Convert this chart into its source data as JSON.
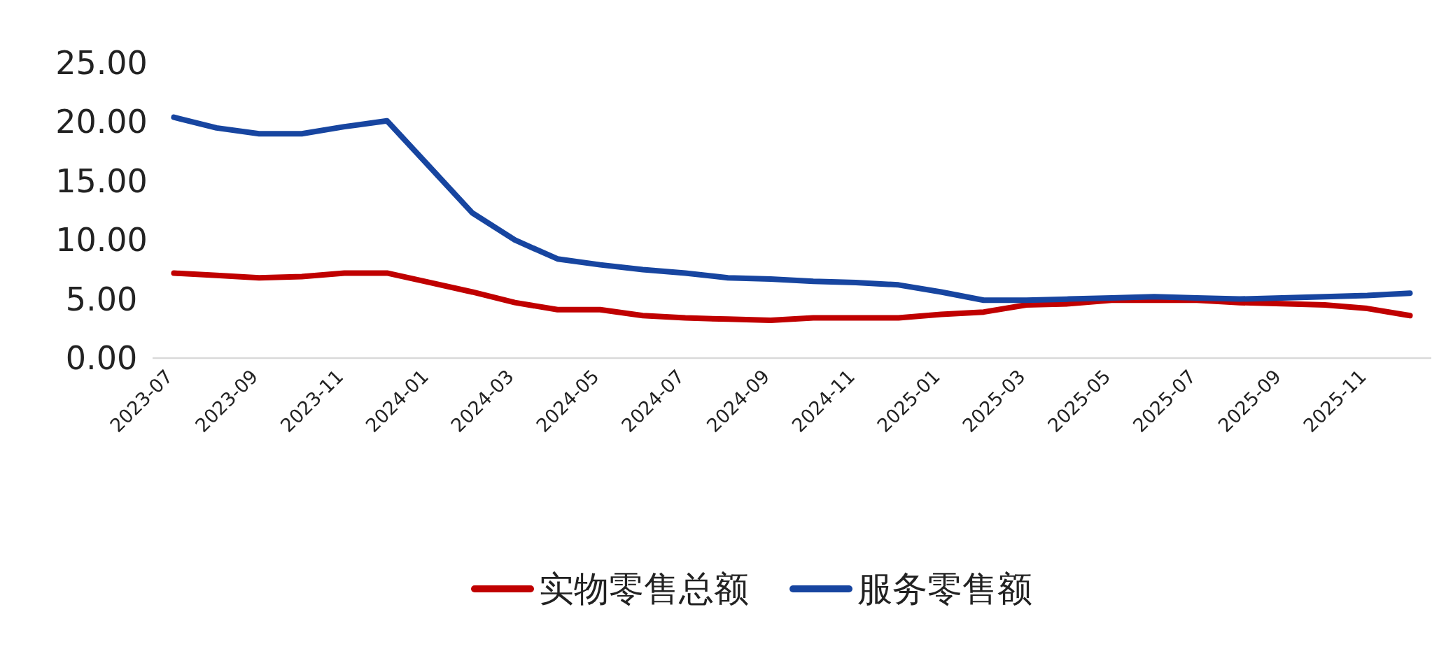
{
  "chart_data": {
    "type": "line",
    "categories": [
      "2023-07",
      null,
      "2023-09",
      null,
      "2023-11",
      null,
      "2024-01",
      null,
      "2024-03",
      null,
      "2024-05",
      null,
      "2024-07",
      null,
      "2024-09",
      null,
      "2024-11",
      null,
      "2025-01",
      null,
      "2025-03",
      null,
      "2025-05",
      null,
      "2025-07",
      null,
      "2025-09",
      null,
      "2025-11",
      null
    ],
    "series": [
      {
        "name": "实物零售总额",
        "color": "#c00000",
        "values": [
          7.2,
          7.0,
          6.8,
          6.9,
          7.2,
          7.2,
          6.4,
          5.6,
          4.7,
          4.1,
          4.1,
          3.6,
          3.4,
          3.3,
          3.2,
          3.4,
          3.4,
          3.4,
          3.7,
          3.9,
          4.5,
          4.6,
          4.9,
          4.9,
          4.9,
          4.7,
          4.6,
          4.5,
          4.2,
          3.6
        ]
      },
      {
        "name": "服务零售额",
        "color": "#1745a0",
        "values": [
          20.4,
          19.5,
          19.0,
          19.0,
          19.6,
          20.1,
          16.2,
          12.3,
          10.0,
          8.4,
          7.9,
          7.5,
          7.2,
          6.8,
          6.7,
          6.5,
          6.4,
          6.2,
          5.6,
          4.9,
          4.9,
          5.0,
          5.1,
          5.2,
          5.1,
          5.0,
          5.1,
          5.2,
          5.3,
          5.5
        ]
      }
    ],
    "ylim": [
      0,
      25
    ],
    "yticks": [
      {
        "value": 0,
        "label": "0.00"
      },
      {
        "value": 5,
        "label": "5.00"
      },
      {
        "value": 10,
        "label": "10.00"
      },
      {
        "value": 15,
        "label": "15.00"
      },
      {
        "value": 20,
        "label": "20.00"
      },
      {
        "value": 25,
        "label": "25.00"
      }
    ],
    "grid": false,
    "legend": "bottom",
    "marker": "none",
    "line_style": "solid"
  }
}
